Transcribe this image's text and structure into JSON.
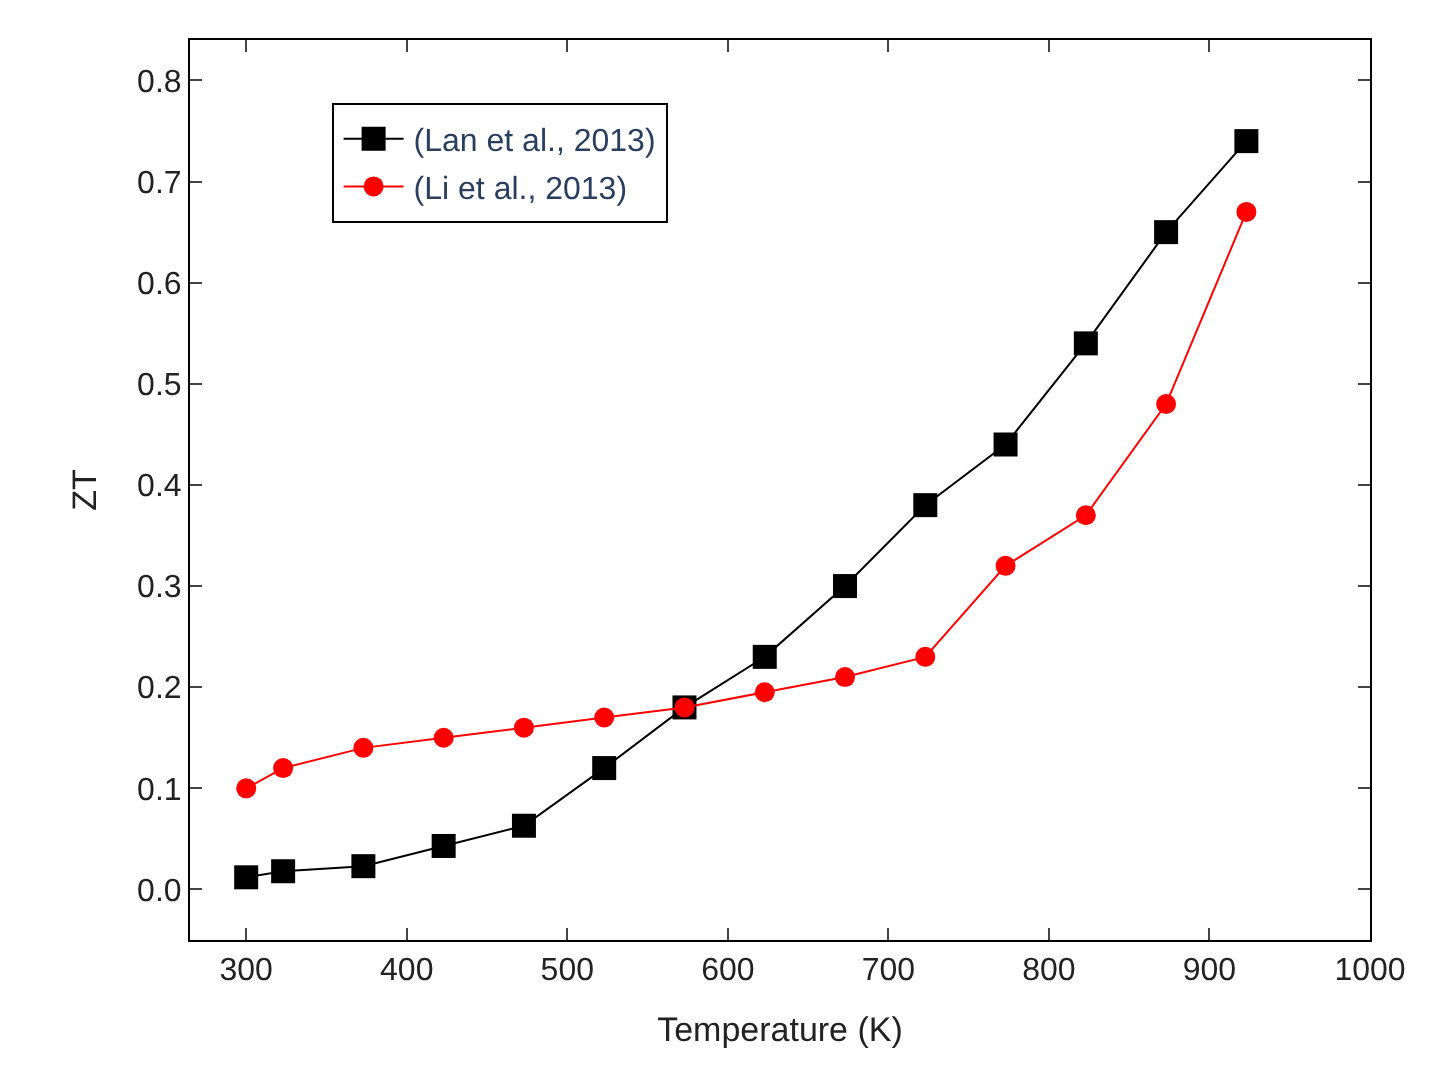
{
  "chart_data": {
    "type": "line",
    "xlabel": "Temperature (K)",
    "ylabel": "ZT",
    "x": [
      300,
      323,
      373,
      423,
      473,
      523,
      573,
      623,
      673,
      723,
      773,
      823,
      873,
      923
    ],
    "series": [
      {
        "name": "(Lan et al., 2013)",
        "color": "#000000",
        "marker": "square",
        "values": [
          0.012,
          0.018,
          0.023,
          0.043,
          0.063,
          0.12,
          0.18,
          0.23,
          0.3,
          0.38,
          0.44,
          0.54,
          0.65,
          0.74
        ]
      },
      {
        "name": "(Li et al., 2013)",
        "color": "#ff0000",
        "marker": "circle",
        "values": [
          0.1,
          0.12,
          0.14,
          0.15,
          0.16,
          0.17,
          0.18,
          0.195,
          0.21,
          0.23,
          0.32,
          0.37,
          0.48,
          0.67
        ]
      }
    ],
    "xlim": [
      265,
      1000
    ],
    "xticks": [
      300,
      400,
      500,
      600,
      700,
      800,
      900,
      1000
    ],
    "ylim": [
      -0.05,
      0.84
    ],
    "yticks": [
      {
        "value": 0,
        "label": "0.0"
      },
      0.1,
      0.2,
      0.3,
      0.4,
      0.5,
      0.6,
      0.7,
      0.8
    ],
    "legend": "top left",
    "line_style": "solid"
  }
}
